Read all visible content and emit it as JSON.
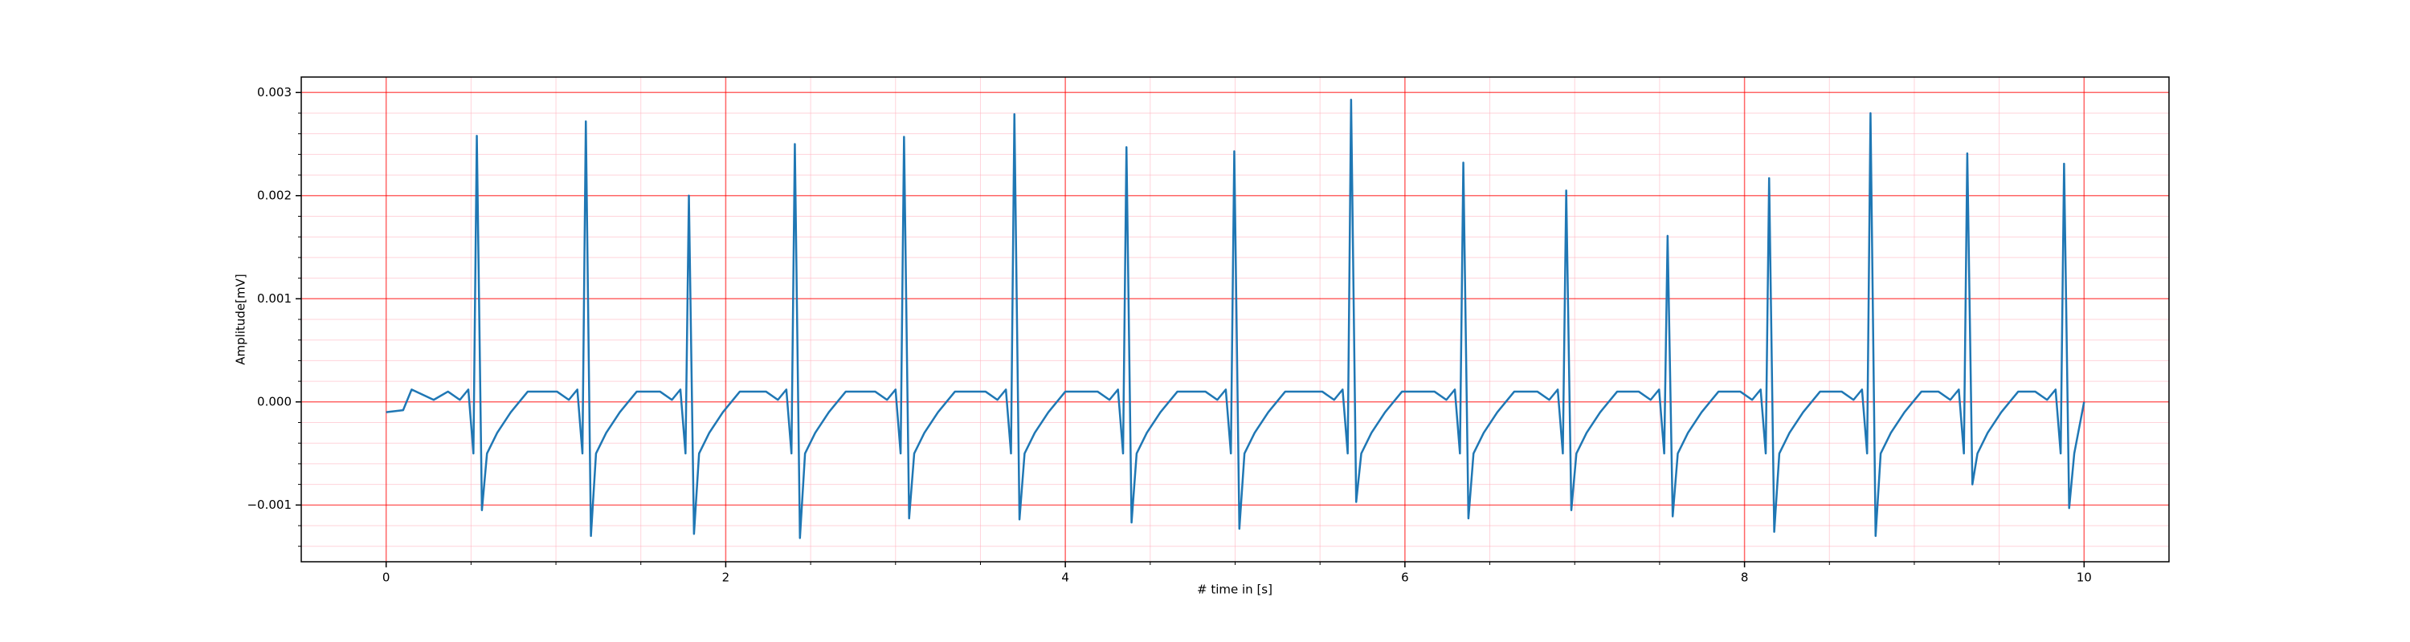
{
  "chart_data": {
    "type": "line",
    "xlabel": "# time in [s]",
    "ylabel": "Amplitude[mV]",
    "color": "#1f77b4",
    "grid": true,
    "major_grid_color": "#ff0000",
    "minor_grid_color": "#ffb6c1",
    "xlim": [
      -0.5,
      10.5
    ],
    "ylim": [
      -0.00155,
      0.00315
    ],
    "xticks": [
      0,
      2,
      4,
      6,
      8,
      10
    ],
    "yticks": [
      {
        "value": -0.001,
        "label": "−0.001"
      },
      {
        "value": 0,
        "label": "0.000"
      },
      {
        "value": 0.001,
        "label": "0.001"
      },
      {
        "value": 0.002,
        "label": "0.002"
      },
      {
        "value": 0.003,
        "label": "0.003"
      }
    ],
    "xminorticks": [
      0.5,
      1,
      1.5,
      2.5,
      3,
      3.5,
      4.5,
      5,
      5.5,
      6.5,
      7,
      7.5,
      8.5,
      9,
      9.5
    ],
    "yminorticks": [
      -0.0014,
      -0.0012,
      -0.0008,
      -0.0006,
      -0.0004,
      -0.0002,
      0.0002,
      0.0004,
      0.0006,
      0.0008,
      0.0012,
      0.0014,
      0.0016,
      0.0018,
      0.0022,
      0.0024,
      0.0026,
      0.0028
    ],
    "x": [
      0,
      0.1,
      0.15,
      0.28,
      0.364,
      0.434,
      0.484,
      0.514,
      0.534,
      0.564,
      0.594,
      0.654,
      0.734,
      0.834,
      1.006,
      1.076,
      1.126,
      1.156,
      1.176,
      1.206,
      1.236,
      1.296,
      1.376,
      1.476,
      1.613,
      1.683,
      1.733,
      1.763,
      1.783,
      1.813,
      1.843,
      1.903,
      1.983,
      2.083,
      2.237,
      2.307,
      2.357,
      2.387,
      2.407,
      2.437,
      2.467,
      2.527,
      2.607,
      2.707,
      2.88,
      2.95,
      3.0,
      3.03,
      3.05,
      3.08,
      3.11,
      3.17,
      3.25,
      3.35,
      3.53,
      3.6,
      3.65,
      3.68,
      3.7,
      3.73,
      3.76,
      3.82,
      3.9,
      4.0,
      4.19,
      4.26,
      4.31,
      4.34,
      4.36,
      4.39,
      4.42,
      4.48,
      4.56,
      4.66,
      4.825,
      4.895,
      4.945,
      4.975,
      4.995,
      5.025,
      5.055,
      5.115,
      5.195,
      5.295,
      5.513,
      5.583,
      5.633,
      5.663,
      5.683,
      5.713,
      5.743,
      5.803,
      5.883,
      5.983,
      6.174,
      6.244,
      6.294,
      6.324,
      6.344,
      6.374,
      6.404,
      6.464,
      6.544,
      6.644,
      6.78,
      6.85,
      6.9,
      6.93,
      6.95,
      6.98,
      7.01,
      7.07,
      7.15,
      7.25,
      7.377,
      7.447,
      7.497,
      7.527,
      7.547,
      7.577,
      7.607,
      7.667,
      7.747,
      7.847,
      7.975,
      8.045,
      8.095,
      8.125,
      8.145,
      8.175,
      8.205,
      8.265,
      8.345,
      8.445,
      8.572,
      8.642,
      8.692,
      8.722,
      8.742,
      8.772,
      8.802,
      8.862,
      8.942,
      9.042,
      9.142,
      9.212,
      9.262,
      9.292,
      9.312,
      9.342,
      9.372,
      9.432,
      9.512,
      9.612,
      9.712,
      9.782,
      9.832,
      9.862,
      9.882,
      9.912,
      9.942,
      10.0
    ],
    "values": [
      -0.0001,
      -8e-05,
      0.00012,
      2e-05,
      0.0001,
      2e-05,
      0.00012,
      -0.0005,
      0.00258,
      -0.00105,
      -0.0005,
      -0.0003,
      -0.0001,
      0.0001,
      0.0001,
      2e-05,
      0.00012,
      -0.0005,
      0.00272,
      -0.0013,
      -0.0005,
      -0.0003,
      -0.0001,
      0.0001,
      0.0001,
      2e-05,
      0.00012,
      -0.0005,
      0.002,
      -0.00128,
      -0.0005,
      -0.0003,
      -0.0001,
      0.0001,
      0.0001,
      2e-05,
      0.00012,
      -0.0005,
      0.0025,
      -0.00132,
      -0.0005,
      -0.0003,
      -0.0001,
      0.0001,
      0.0001,
      2e-05,
      0.00012,
      -0.0005,
      0.00257,
      -0.00113,
      -0.0005,
      -0.0003,
      -0.0001,
      0.0001,
      0.0001,
      2e-05,
      0.00012,
      -0.0005,
      0.00279,
      -0.00114,
      -0.0005,
      -0.0003,
      -0.0001,
      0.0001,
      0.0001,
      2e-05,
      0.00012,
      -0.0005,
      0.00247,
      -0.00117,
      -0.0005,
      -0.0003,
      -0.0001,
      0.0001,
      0.0001,
      2e-05,
      0.00012,
      -0.0005,
      0.00243,
      -0.00123,
      -0.0005,
      -0.0003,
      -0.0001,
      0.0001,
      0.0001,
      2e-05,
      0.00012,
      -0.0005,
      0.00293,
      -0.00097,
      -0.0005,
      -0.0003,
      -0.0001,
      0.0001,
      0.0001,
      2e-05,
      0.00012,
      -0.0005,
      0.00232,
      -0.00113,
      -0.0005,
      -0.0003,
      -0.0001,
      0.0001,
      0.0001,
      2e-05,
      0.00012,
      -0.0005,
      0.00205,
      -0.00105,
      -0.0005,
      -0.0003,
      -0.0001,
      0.0001,
      0.0001,
      2e-05,
      0.00012,
      -0.0005,
      0.00161,
      -0.00111,
      -0.0005,
      -0.0003,
      -0.0001,
      0.0001,
      0.0001,
      2e-05,
      0.00012,
      -0.0005,
      0.00217,
      -0.00126,
      -0.0005,
      -0.0003,
      -0.0001,
      0.0001,
      0.0001,
      2e-05,
      0.00012,
      -0.0005,
      0.0028,
      -0.0013,
      -0.0005,
      -0.0003,
      -0.0001,
      0.0001,
      0.0001,
      2e-05,
      0.00012,
      -0.0005,
      0.00241,
      -0.0008,
      -0.0005,
      -0.0003,
      -0.0001,
      0.0001,
      0.0001,
      2e-05,
      0.00012,
      -0.0005,
      0.00231,
      -0.00103,
      -0.0005,
      0.0
    ]
  }
}
